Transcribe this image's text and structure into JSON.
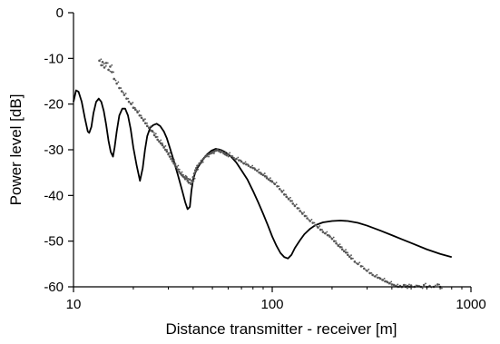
{
  "chart_data": {
    "type": "line",
    "title": "",
    "xlabel": "Distance transmitter - receiver [m]",
    "ylabel": "Power level [dB]",
    "xscale": "log",
    "xlim": [
      10,
      1000
    ],
    "ylim": [
      -60,
      0
    ],
    "xticks": [
      10,
      100,
      1000
    ],
    "xtick_labels": [
      "10",
      "100",
      "1000"
    ],
    "yticks": [
      0,
      -10,
      -20,
      -30,
      -40,
      -50,
      -60
    ],
    "ytick_labels": [
      "0",
      "-10",
      "-20",
      "-30",
      "-40",
      "-50",
      "-60"
    ],
    "grid": false,
    "legend": "none",
    "series": [
      {
        "style": "line",
        "color": "#000000",
        "x": [
          10,
          10.3,
          10.6,
          11.0,
          11.4,
          11.8,
          12.0,
          12.3,
          12.6,
          13.0,
          13.4,
          13.8,
          14.2,
          14.6,
          15.0,
          15.4,
          15.8,
          16.1,
          16.5,
          17.0,
          17.6,
          18.2,
          18.8,
          19.4,
          20.0,
          20.8,
          21.6,
          22.3,
          22.9,
          23.5,
          24.3,
          25.2,
          26.2,
          27.3,
          28.5,
          29.5,
          30.5,
          31.5,
          32.5,
          33.5,
          34.5,
          35.5,
          36.5,
          37.5,
          38.5,
          39.2,
          40.0,
          41.0,
          42.0,
          43.5,
          45.0,
          47.0,
          49.5,
          52.0,
          55.0,
          58.0,
          62.0,
          66.0,
          70.0,
          75.0,
          80.0,
          85.0,
          90.0,
          95.0,
          100.0,
          105.0,
          110.0,
          115.0,
          120.0,
          125.0,
          130.0,
          138.0,
          145.0,
          155.0,
          165.0,
          180.0,
          200.0,
          220.0,
          240.0,
          270.0,
          300.0,
          350.0,
          400.0,
          450.0,
          500.0,
          600.0,
          700.0,
          800.0
        ],
        "y": [
          -19.5,
          -17.0,
          -17.3,
          -19.5,
          -23.0,
          -26.0,
          -26.3,
          -25.0,
          -22.0,
          -19.5,
          -18.8,
          -19.5,
          -21.5,
          -24.5,
          -28.0,
          -30.5,
          -31.5,
          -29.5,
          -26.0,
          -22.5,
          -21.0,
          -21.0,
          -22.5,
          -25.5,
          -29.5,
          -33.5,
          -36.8,
          -34.0,
          -30.0,
          -27.0,
          -25.2,
          -24.6,
          -24.3,
          -24.8,
          -26.0,
          -27.5,
          -29.5,
          -31.5,
          -33.5,
          -35.5,
          -37.5,
          -39.5,
          -41.5,
          -43.0,
          -42.5,
          -39.0,
          -36.5,
          -35.0,
          -34.0,
          -33.0,
          -32.0,
          -31.0,
          -30.2,
          -29.8,
          -30.0,
          -30.5,
          -31.5,
          -32.8,
          -34.5,
          -36.5,
          -39.0,
          -41.5,
          -44.0,
          -46.5,
          -49.0,
          -51.0,
          -52.6,
          -53.5,
          -53.8,
          -53.0,
          -51.5,
          -49.8,
          -48.5,
          -47.3,
          -46.5,
          -45.9,
          -45.6,
          -45.5,
          -45.6,
          -46.0,
          -46.6,
          -47.7,
          -48.7,
          -49.6,
          -50.4,
          -51.8,
          -52.8,
          -53.5
        ]
      },
      {
        "style": "scatter",
        "color": "#555555",
        "x": [
          13.5,
          13.8,
          14.0,
          14.3,
          14.6,
          15.0,
          15.3,
          15.6,
          16.0,
          16.5,
          17.0,
          17.5,
          18.0,
          18.5,
          19.0,
          19.5,
          20.0,
          20.5,
          21.0,
          21.5,
          22.0,
          22.5,
          23.0,
          23.5,
          24.0,
          24.5,
          25.0,
          25.5,
          26.0,
          26.5,
          27.0,
          27.5,
          28.0,
          28.5,
          29.0,
          29.5,
          30.0,
          30.5,
          31.0,
          31.5,
          32.0,
          32.5,
          33.0,
          33.5,
          34.0,
          34.5,
          35.0,
          35.5,
          36.0,
          36.5,
          37.0,
          37.5,
          38.0,
          38.5,
          39.0,
          39.5,
          40.0,
          40.5,
          41.0,
          41.5,
          42.0,
          43.0,
          44.0,
          45.0,
          46.0,
          47.0,
          48.0,
          49.0,
          50.0,
          51.0,
          52.0,
          53.0,
          54.0,
          55.0,
          56.0,
          57.0,
          58.0,
          59.0,
          60.0,
          62.0,
          64.0,
          66.0,
          68.0,
          70.0,
          72.0,
          74.0,
          76.0,
          78.0,
          80.0,
          82.0,
          84.0,
          86.0,
          88.0,
          90.0,
          92.0,
          94.0,
          96.0,
          98.0,
          100.0,
          103.0,
          106.0,
          109.0,
          112.0,
          115.0,
          118.0,
          121.0,
          124.0,
          127.0,
          130.0,
          134.0,
          138.0,
          142.0,
          146.0,
          150.0,
          155.0,
          160.0,
          165.0,
          170.0,
          175.0,
          180.0,
          185.0,
          190.0,
          195.0,
          200.0,
          205.0,
          210.0,
          215.0,
          220.0,
          225.0,
          230.0,
          235.0,
          240.0,
          245.0,
          250.0,
          260.0,
          270.0,
          280.0,
          290.0,
          300.0,
          310.0,
          320.0,
          330.0,
          340.0,
          350.0,
          360.0,
          370.0,
          380.0,
          390.0,
          400.0,
          410.0,
          420.0,
          430.0,
          440.0,
          450.0,
          460.0,
          470.0,
          480.0,
          490.0,
          500.0,
          520.0,
          540.0,
          560.0,
          580.0,
          600.0,
          620.0,
          650.0,
          680.0,
          700.0
        ],
        "y": [
          -10.5,
          -11.5,
          -10.8,
          -12.0,
          -11.0,
          -12.5,
          -11.8,
          -13.0,
          -14.5,
          -15.5,
          -16.5,
          -17.2,
          -18.0,
          -18.8,
          -19.5,
          -20.0,
          -20.8,
          -21.2,
          -21.8,
          -22.5,
          -23.0,
          -23.6,
          -24.2,
          -24.8,
          -25.2,
          -25.8,
          -26.0,
          -26.8,
          -27.2,
          -27.8,
          -28.2,
          -28.6,
          -29.0,
          -29.5,
          -30.0,
          -30.4,
          -31.0,
          -31.5,
          -32.0,
          -32.5,
          -33.0,
          -33.4,
          -33.8,
          -34.3,
          -34.8,
          -35.2,
          -35.5,
          -35.8,
          -36.0,
          -36.4,
          -36.0,
          -36.8,
          -37.2,
          -36.5,
          -37.5,
          -36.8,
          -36.0,
          -35.2,
          -34.5,
          -34.0,
          -33.5,
          -33.0,
          -32.4,
          -32.0,
          -31.5,
          -31.2,
          -31.0,
          -30.8,
          -30.5,
          -30.4,
          -30.2,
          -30.0,
          -30.3,
          -30.5,
          -30.4,
          -30.8,
          -31.0,
          -31.2,
          -31.0,
          -31.4,
          -31.8,
          -32.0,
          -32.3,
          -32.6,
          -33.0,
          -33.2,
          -33.5,
          -33.8,
          -34.0,
          -34.3,
          -34.6,
          -35.0,
          -35.3,
          -35.5,
          -35.8,
          -36.2,
          -36.5,
          -36.8,
          -37.0,
          -37.5,
          -38.0,
          -38.6,
          -39.2,
          -39.8,
          -40.3,
          -40.8,
          -41.2,
          -41.8,
          -42.3,
          -42.8,
          -43.4,
          -44.0,
          -44.5,
          -45.0,
          -45.6,
          -46.0,
          -46.5,
          -47.0,
          -47.5,
          -48.0,
          -48.3,
          -48.7,
          -49.0,
          -49.5,
          -50.0,
          -50.5,
          -51.0,
          -51.3,
          -51.8,
          -52.2,
          -52.5,
          -53.0,
          -53.4,
          -53.8,
          -54.5,
          -55.0,
          -55.5,
          -56.0,
          -56.5,
          -57.0,
          -57.4,
          -57.7,
          -58.0,
          -58.2,
          -58.5,
          -58.8,
          -59.0,
          -59.2,
          -59.5,
          -59.6,
          -59.8,
          -60.0,
          -59.8,
          -60.0,
          -59.6,
          -60.0,
          -59.8,
          -60.0,
          -59.7,
          -60.0,
          -59.8,
          -60.0,
          -59.6,
          -60.0,
          -59.8,
          -60.0,
          -59.5,
          -60.0
        ]
      }
    ]
  }
}
